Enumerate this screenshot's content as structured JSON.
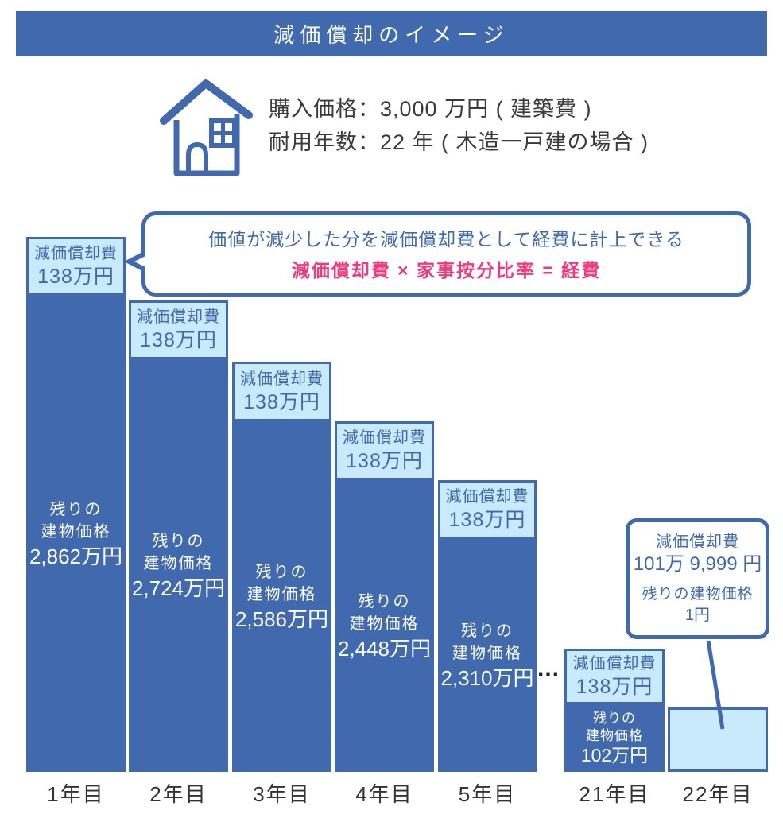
{
  "title": "減価償却のイメージ",
  "info": {
    "line1": "購入価格：3,000 万円 ( 建築費 )",
    "line2": "耐用年数：22 年 ( 木造一戸建の場合 )"
  },
  "callout": {
    "line1": "価値が減少した分を減価償却費として経費に計上できる",
    "formula": "減価償却費 × 家事按分比率 = 経費"
  },
  "ellipsis": "...",
  "final_note": {
    "dep_label": "減価償却費",
    "dep_value": "101万 9,999 円",
    "rem_label": "残りの建物価格",
    "rem_value": "1円"
  },
  "bars": [
    {
      "year": "1年目",
      "dep_label": "減価償却費",
      "dep_value": "138万円",
      "rem_line1": "残りの",
      "rem_line2": "建物価格",
      "rem_value": "2,862万円"
    },
    {
      "year": "2年目",
      "dep_label": "減価償却費",
      "dep_value": "138万円",
      "rem_line1": "残りの",
      "rem_line2": "建物価格",
      "rem_value": "2,724万円"
    },
    {
      "year": "3年目",
      "dep_label": "減価償却費",
      "dep_value": "138万円",
      "rem_line1": "残りの",
      "rem_line2": "建物価格",
      "rem_value": "2,586万円"
    },
    {
      "year": "4年目",
      "dep_label": "減価償却費",
      "dep_value": "138万円",
      "rem_line1": "残りの",
      "rem_line2": "建物価格",
      "rem_value": "2,448万円"
    },
    {
      "year": "5年目",
      "dep_label": "減価償却費",
      "dep_value": "138万円",
      "rem_line1": "残りの",
      "rem_line2": "建物価格",
      "rem_value": "2,310万円"
    },
    {
      "year": "21年目",
      "dep_label": "減価償却費",
      "dep_value": "138万円",
      "rem_line1": "残りの",
      "rem_line2": "建物価格",
      "rem_value": "102万円"
    },
    {
      "year": "22年目",
      "dep_label": "",
      "dep_value": "",
      "rem_line1": "",
      "rem_line2": "",
      "rem_value": ""
    }
  ],
  "colors": {
    "primary_blue": "#4169AD",
    "light_blue": "#C8EAFA",
    "formula_pink": "#F2397E",
    "label_gray": "#333333"
  },
  "chart_data": {
    "type": "bar",
    "stacked": true,
    "unit": "万円",
    "title": "減価償却のイメージ",
    "categories": [
      "1年目",
      "2年目",
      "3年目",
      "4年目",
      "5年目",
      "21年目",
      "22年目"
    ],
    "series": [
      {
        "name": "残りの建物価格",
        "values": [
          2862,
          2724,
          2586,
          2448,
          2310,
          102,
          0.0001
        ]
      },
      {
        "name": "減価償却費",
        "values": [
          138,
          138,
          138,
          138,
          138,
          138,
          101.9999
        ]
      }
    ],
    "purchase_price_man_yen": 3000,
    "useful_life_years": 22,
    "annual_depreciation_man_yen": 138,
    "axis_break": "years 6-20 omitted, shown as ellipsis between 5年目 and 21年目",
    "legend_position": "none",
    "grid": false
  }
}
